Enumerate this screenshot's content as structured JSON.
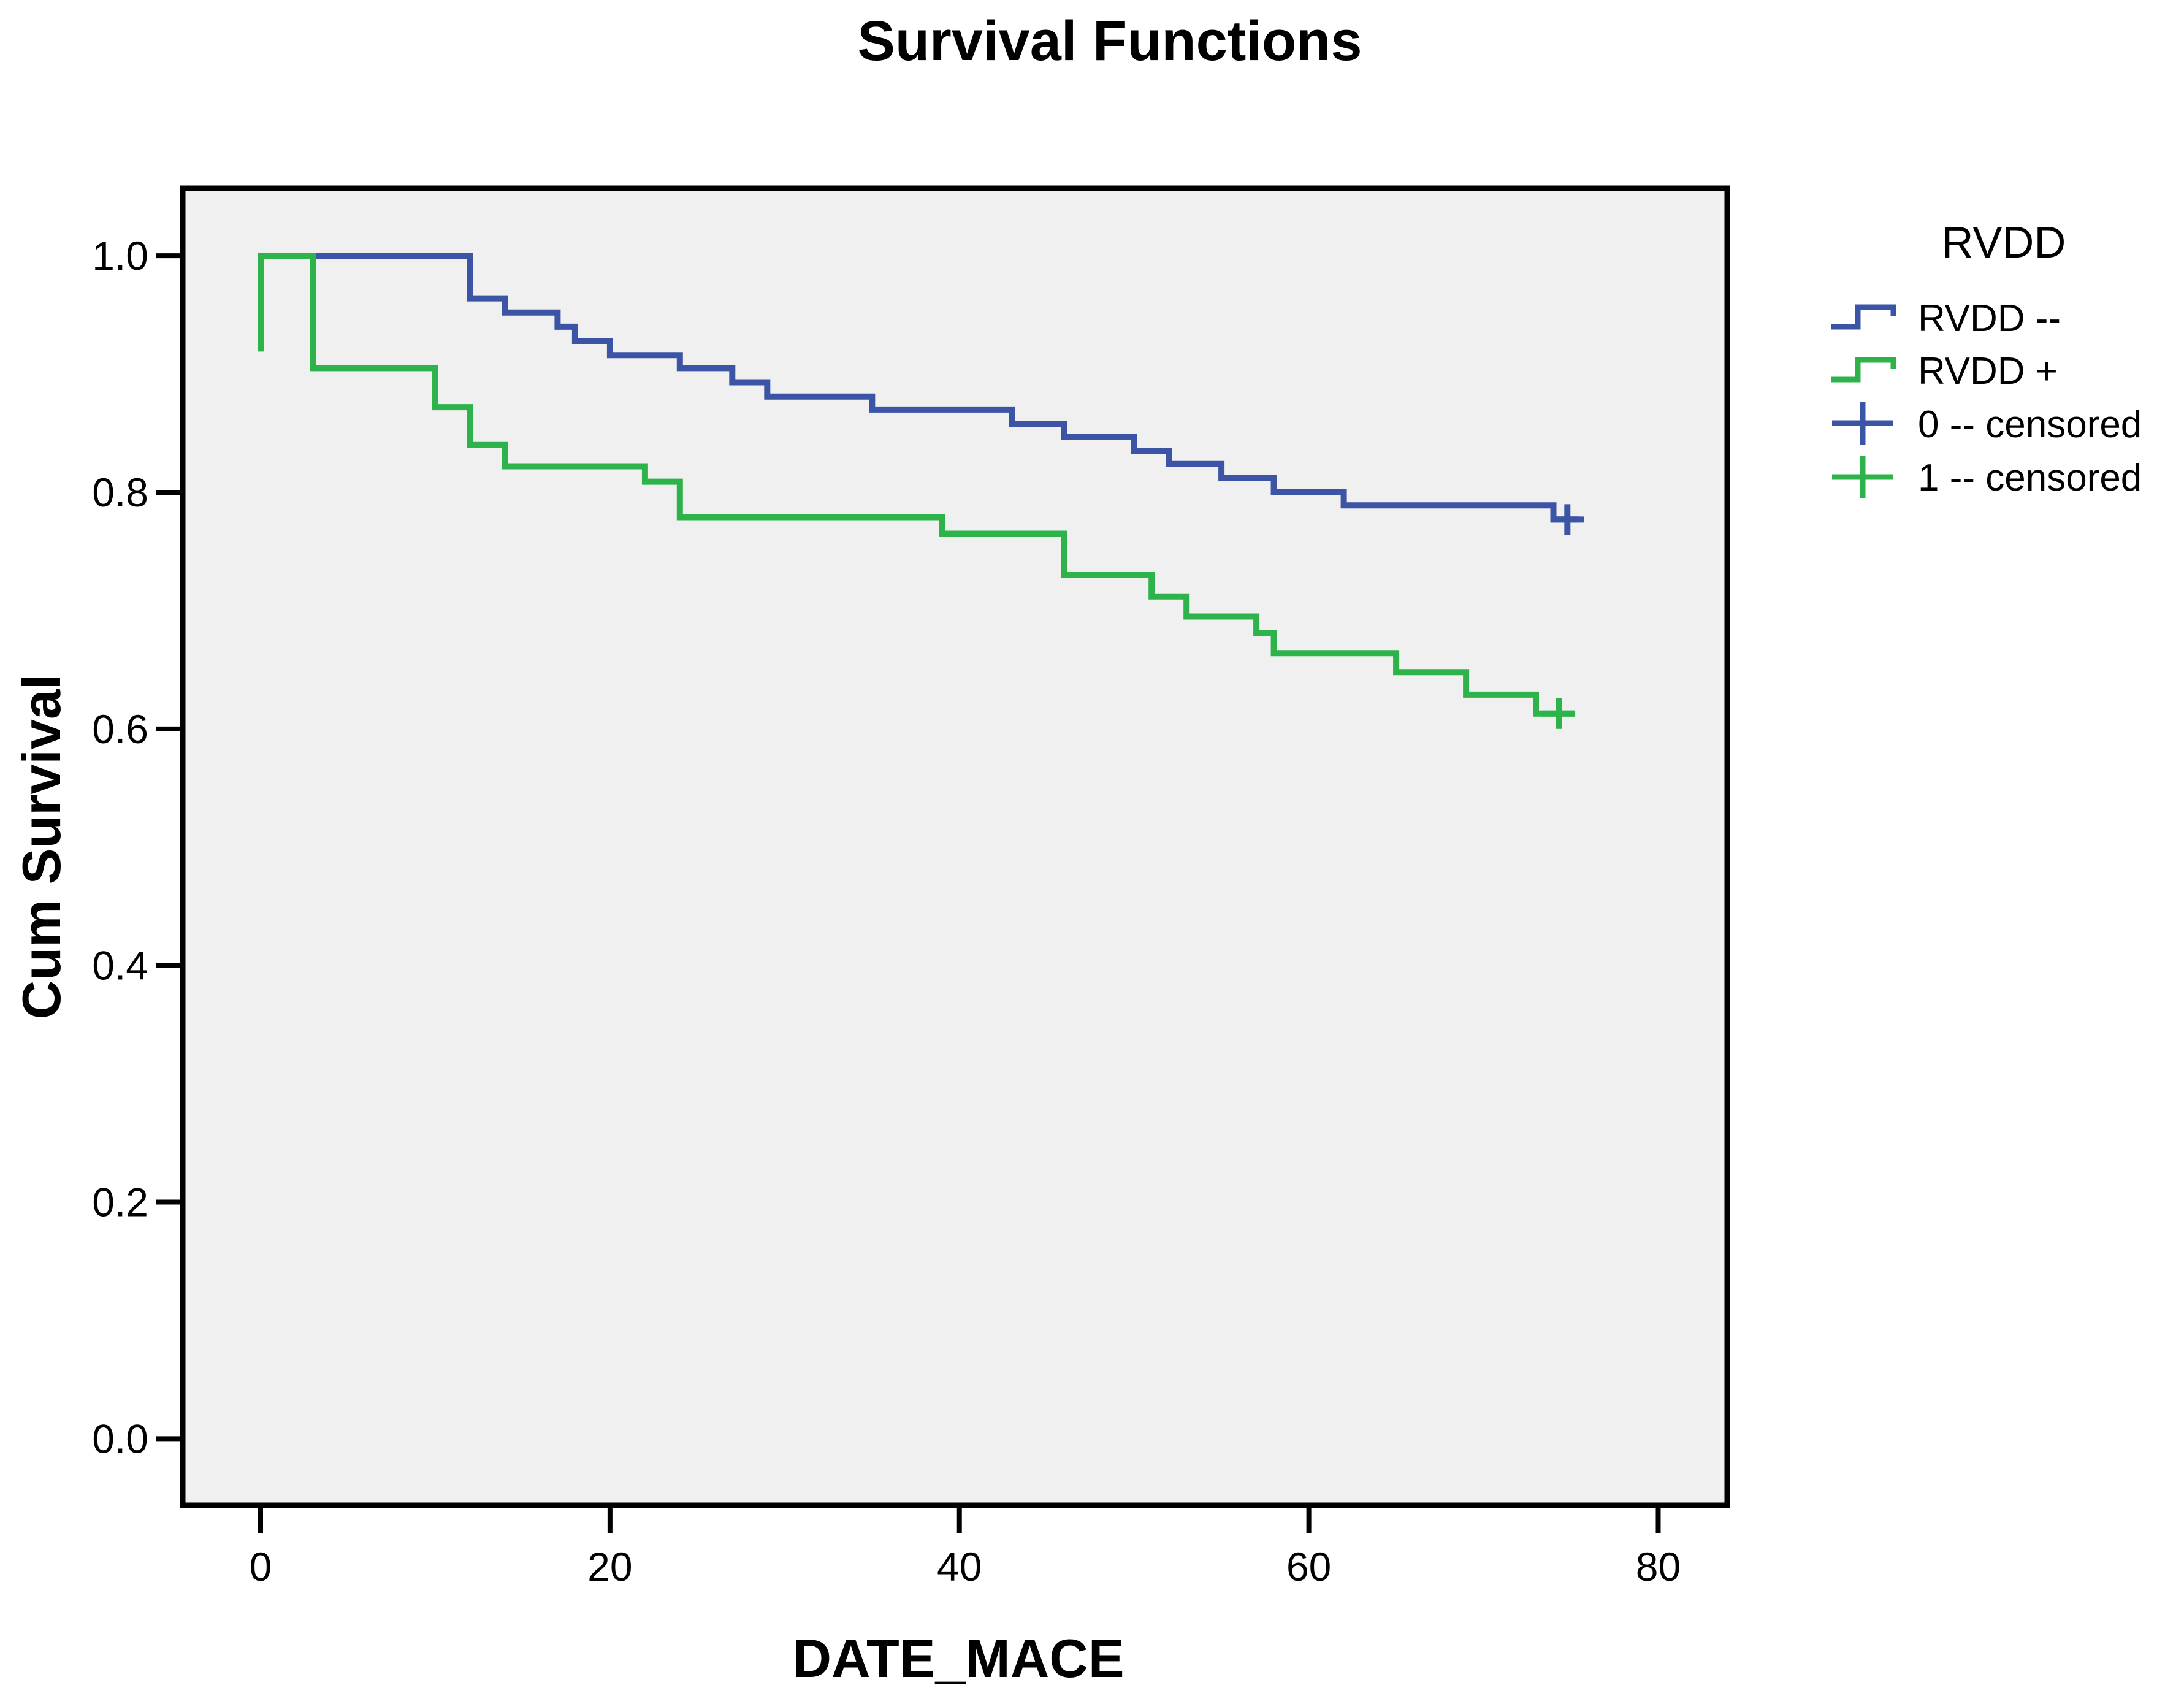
{
  "title": "Survival Functions",
  "axes": {
    "x_label": "DATE_MACE",
    "y_label": "Cum Survival"
  },
  "legend": {
    "title": "RVDD",
    "items": [
      {
        "label": "RVDD --",
        "symbol": "step",
        "color": "#3B54A5"
      },
      {
        "label": "RVDD +",
        "symbol": "step",
        "color": "#2DB34A"
      },
      {
        "label": "0 -- censored",
        "symbol": "plus",
        "color": "#3B54A5"
      },
      {
        "label": "1 -- censored",
        "symbol": "plus",
        "color": "#2DB34A"
      }
    ]
  },
  "colors": {
    "plot_background": "#F0F0F0",
    "rvdd_negative_blue": "#3B54A5",
    "rvdd_positive_green": "#2DB34A",
    "text": "#000000"
  },
  "chart_data": {
    "type": "line",
    "subtype": "kaplan-meier-step",
    "title": "Survival Functions",
    "xlabel": "DATE_MACE",
    "ylabel": "Cum Survival",
    "xlim": [
      -4.5,
      84
    ],
    "ylim": [
      -0.057,
      1.057
    ],
    "x_ticks": [
      0,
      20,
      40,
      60,
      80
    ],
    "y_ticks": [
      "0.0",
      "0.2",
      "0.4",
      "0.6",
      "0.8",
      "1.0"
    ],
    "grid": false,
    "legend_position": "right",
    "series": [
      {
        "name": "RVDD --",
        "group_code": "0",
        "color": "#3B54A5",
        "points": [
          [
            0,
            1.0
          ],
          [
            12,
            1.0
          ],
          [
            12,
            0.964
          ],
          [
            14,
            0.964
          ],
          [
            14,
            0.952
          ],
          [
            17,
            0.952
          ],
          [
            17,
            0.94
          ],
          [
            18,
            0.94
          ],
          [
            18,
            0.928
          ],
          [
            20,
            0.928
          ],
          [
            20,
            0.916
          ],
          [
            24,
            0.916
          ],
          [
            24,
            0.905
          ],
          [
            27,
            0.905
          ],
          [
            27,
            0.893
          ],
          [
            29,
            0.893
          ],
          [
            29,
            0.881
          ],
          [
            35,
            0.881
          ],
          [
            35,
            0.87
          ],
          [
            43,
            0.87
          ],
          [
            43,
            0.858
          ],
          [
            46,
            0.858
          ],
          [
            46,
            0.847
          ],
          [
            50,
            0.847
          ],
          [
            50,
            0.835
          ],
          [
            52,
            0.835
          ],
          [
            52,
            0.824
          ],
          [
            55,
            0.824
          ],
          [
            55,
            0.812
          ],
          [
            58,
            0.812
          ],
          [
            58,
            0.8
          ],
          [
            62,
            0.8
          ],
          [
            62,
            0.789
          ],
          [
            74,
            0.789
          ],
          [
            74,
            0.777
          ],
          [
            75.5,
            0.777
          ]
        ],
        "censored": [
          [
            74.8,
            0.777
          ]
        ]
      },
      {
        "name": "RVDD +",
        "group_code": "1",
        "color": "#2DB34A",
        "points": [
          [
            0,
            0.919
          ],
          [
            0,
            1.0
          ],
          [
            3,
            1.0
          ],
          [
            3,
            0.905
          ],
          [
            10,
            0.905
          ],
          [
            10,
            0.872
          ],
          [
            12,
            0.872
          ],
          [
            12,
            0.84
          ],
          [
            14,
            0.84
          ],
          [
            14,
            0.822
          ],
          [
            22,
            0.822
          ],
          [
            22,
            0.809
          ],
          [
            24,
            0.809
          ],
          [
            24,
            0.779
          ],
          [
            39,
            0.779
          ],
          [
            39,
            0.765
          ],
          [
            46,
            0.765
          ],
          [
            46,
            0.73
          ],
          [
            51,
            0.73
          ],
          [
            51,
            0.712
          ],
          [
            53,
            0.712
          ],
          [
            53,
            0.695
          ],
          [
            57,
            0.695
          ],
          [
            57,
            0.681
          ],
          [
            58,
            0.681
          ],
          [
            58,
            0.664
          ],
          [
            65,
            0.664
          ],
          [
            65,
            0.648
          ],
          [
            69,
            0.648
          ],
          [
            69,
            0.629
          ],
          [
            73,
            0.629
          ],
          [
            73,
            0.613
          ],
          [
            75.2,
            0.613
          ]
        ],
        "censored": [
          [
            74.3,
            0.613
          ]
        ]
      }
    ]
  }
}
